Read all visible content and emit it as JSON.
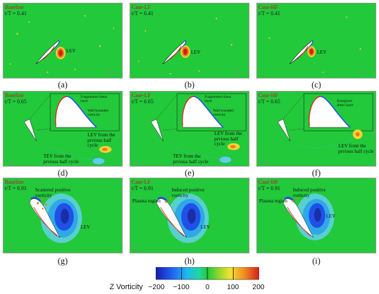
{
  "colors": {
    "background_field": "#22c93a",
    "positive_vorticity": "#e0231b",
    "negative_vorticity": "#2050e8"
  },
  "panels": [
    {
      "case": "Baseline",
      "time": "t/T = 0.41",
      "letter": "(a)",
      "annotations": [
        "LEV"
      ]
    },
    {
      "case": "Case-LF",
      "time": "t/T = 0.41",
      "letter": "(b)",
      "annotations": [
        "LEV"
      ]
    },
    {
      "case": "Case-HF",
      "time": "t/T = 0.41",
      "letter": "(c)",
      "annotations": [
        "LEV"
      ]
    },
    {
      "case": "Baseline",
      "time": "t/T = 0.65",
      "letter": "(d)",
      "annotations": [
        "Fragmented shear\nlayer",
        "Wall bounded\nvorticity",
        "LEV from the\nprvious half cycle",
        "TEV from the\nprvious half cycle"
      ]
    },
    {
      "case": "Case-LF",
      "time": "t/T = 0.65",
      "letter": "(e)",
      "annotations": [
        "Fragmented shear\nlayer",
        "Wall bounded\nvorticity",
        "LEV from the\nprvious half cycle",
        "TEV from the\nprvious half cycle"
      ]
    },
    {
      "case": "Case-HF",
      "time": "t/T = 0.65",
      "letter": "(f)",
      "annotations": [
        "Energized\nshear layer",
        "LEV from the\nprvious half cycle"
      ]
    },
    {
      "case": "Baseline",
      "time": "t/T = 0.91",
      "letter": "(g)",
      "annotations": [
        "Scattered positive\nvorticity",
        "LEV"
      ]
    },
    {
      "case": "Case-LF",
      "time": "t/T = 0.91",
      "letter": "(h)",
      "annotations": [
        "Induced positive\nvorticity",
        "Plasma region",
        "LEV"
      ]
    },
    {
      "case": "Case-HF",
      "time": "t/T = 0.91",
      "letter": "(i)",
      "annotations": [
        "Induced positive\nvorticity",
        "Plasma region",
        "LEV"
      ]
    }
  ],
  "colorbar": {
    "title": "Z Vorticity",
    "min": -200,
    "max": 200,
    "ticks": [
      "−200",
      "−100",
      "0",
      "100",
      "200"
    ]
  }
}
